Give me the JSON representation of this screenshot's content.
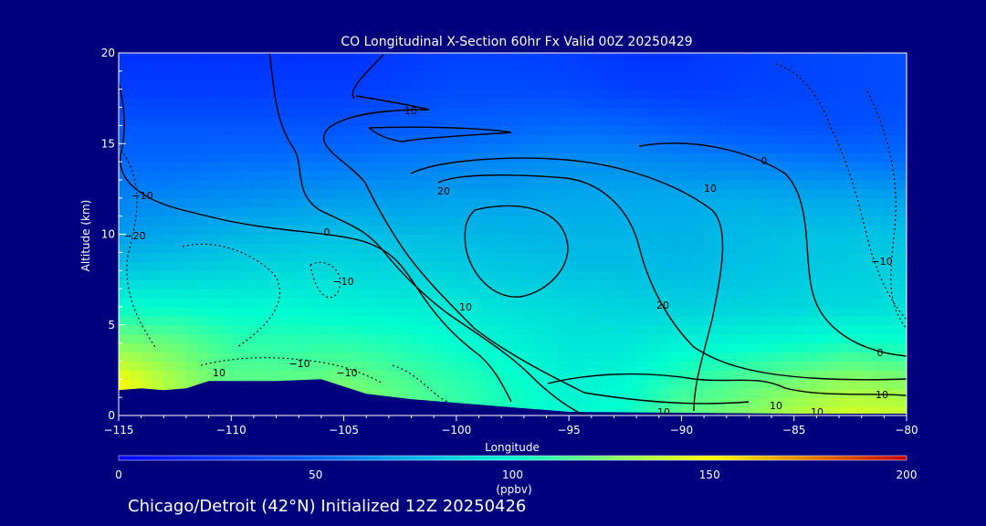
{
  "chart_data": {
    "type": "heatmap",
    "title": "CO Longitudinal X-Section 60hr  Fx Valid 00Z 20250429",
    "xlabel": "Longitude",
    "ylabel": "Altitude (km)",
    "xlim": [
      -115,
      -80
    ],
    "ylim": [
      0,
      20
    ],
    "x_ticks": [
      "−115",
      "−110",
      "−105",
      "−100",
      "−95",
      "−90",
      "−85",
      "−80"
    ],
    "y_ticks": [
      "0",
      "5",
      "10",
      "15",
      "20"
    ],
    "colorbar": {
      "range": [
        0,
        200
      ],
      "ticks": [
        "0",
        "50",
        "100",
        "150",
        "200"
      ],
      "unit": "(ppbv)"
    },
    "contour_labels": [
      "10",
      "0",
      "10",
      "20",
      "20",
      "10",
      "10",
      "0",
      "−10",
      "−10",
      "−20",
      "−10",
      "−10",
      "10",
      "10",
      "−10",
      "10",
      "0",
      "10"
    ],
    "co_field": {
      "lons": [
        -115,
        -112.5,
        -110,
        -107.5,
        -105,
        -102.5,
        -100,
        -97.5,
        -95,
        -92.5,
        -90,
        -87.5,
        -85,
        -82.5,
        -80
      ],
      "alts": [
        0,
        2,
        4,
        6,
        8,
        10,
        12,
        14,
        16,
        18,
        20
      ],
      "values": [
        [
          150,
          130,
          120,
          125,
          130,
          122,
          112,
          105,
          98,
          102,
          118,
          125,
          135,
          142,
          140
        ],
        [
          148,
          132,
          118,
          118,
          122,
          115,
          108,
          102,
          96,
          98,
          108,
          115,
          122,
          128,
          125
        ],
        [
          125,
          120,
          110,
          108,
          108,
          105,
          100,
          96,
          92,
          92,
          96,
          98,
          100,
          104,
          102
        ],
        [
          100,
          100,
          98,
          98,
          96,
          95,
          93,
          90,
          88,
          86,
          85,
          86,
          87,
          88,
          90
        ],
        [
          82,
          84,
          86,
          88,
          88,
          86,
          84,
          82,
          80,
          80,
          78,
          80,
          82,
          84,
          84
        ],
        [
          68,
          72,
          76,
          78,
          80,
          78,
          78,
          76,
          76,
          76,
          75,
          78,
          80,
          80,
          80
        ],
        [
          60,
          62,
          64,
          66,
          68,
          68,
          70,
          70,
          72,
          72,
          72,
          74,
          72,
          72,
          70
        ],
        [
          52,
          52,
          54,
          55,
          56,
          58,
          60,
          62,
          64,
          64,
          62,
          60,
          58,
          56,
          54
        ],
        [
          42,
          42,
          42,
          42,
          42,
          45,
          48,
          50,
          52,
          50,
          46,
          42,
          40,
          40,
          42
        ],
        [
          30,
          30,
          30,
          30,
          30,
          34,
          38,
          38,
          36,
          32,
          30,
          32,
          34,
          36,
          38
        ],
        [
          24,
          24,
          24,
          24,
          24,
          28,
          32,
          32,
          30,
          26,
          26,
          30,
          34,
          36,
          38
        ]
      ]
    },
    "terrain": {
      "lons": [
        -115,
        -114,
        -113,
        -112,
        -111,
        -110,
        -108,
        -106,
        -105,
        -104,
        -102,
        -100,
        -98,
        -96,
        -95,
        -90,
        -85,
        -80
      ],
      "alts": [
        1.4,
        1.5,
        1.4,
        1.5,
        1.9,
        1.9,
        1.9,
        2.0,
        1.6,
        1.2,
        0.9,
        0.7,
        0.5,
        0.3,
        0.2,
        0.15,
        0.1,
        0.1
      ]
    }
  },
  "footer": {
    "text": "Chicago/Detroit (42°N) Initialized 12Z 20250426"
  }
}
